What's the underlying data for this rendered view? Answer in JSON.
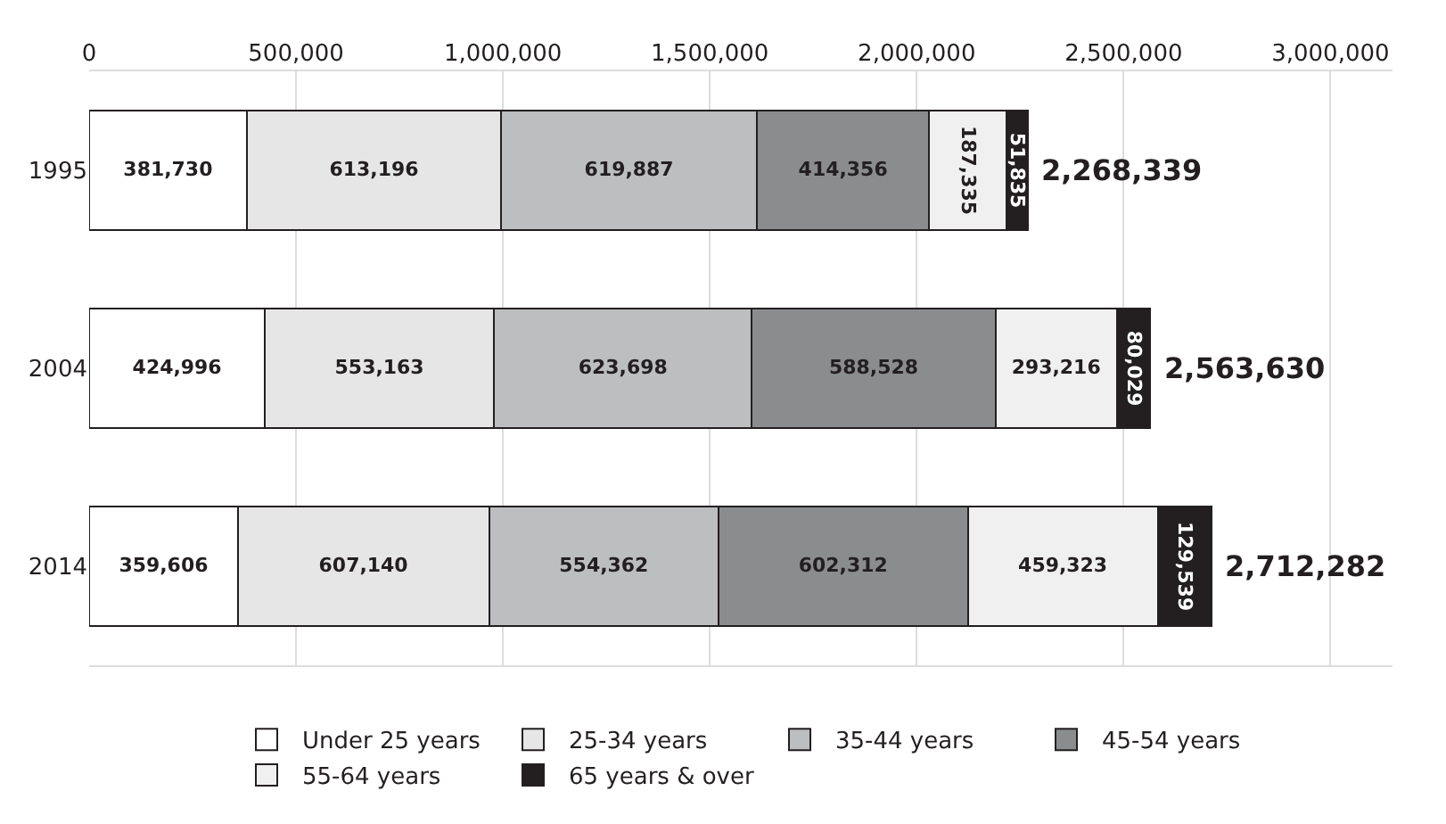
{
  "chart_data": {
    "type": "bar",
    "orientation": "horizontal",
    "stacked": true,
    "categories": [
      "1995",
      "2004",
      "2014"
    ],
    "series": [
      {
        "name": "Under 25 years",
        "color": "#ffffff",
        "values": [
          381730,
          424996,
          359606
        ],
        "value_labels": [
          "381,730",
          "424,996",
          "359,606"
        ]
      },
      {
        "name": "25-34 years",
        "color": "#e6e6e6",
        "values": [
          613196,
          553163,
          607140
        ],
        "value_labels": [
          "613,196",
          "553,163",
          "607,140"
        ]
      },
      {
        "name": "35-44 years",
        "color": "#bcbec0",
        "values": [
          619887,
          623698,
          554362
        ],
        "value_labels": [
          "619,887",
          "623,698",
          "554,362"
        ]
      },
      {
        "name": "45-54 years",
        "color": "#8a8c8e",
        "values": [
          414356,
          588528,
          602312
        ],
        "value_labels": [
          "414,356",
          "588,528",
          "602,312"
        ]
      },
      {
        "name": "55-64 years",
        "color": "#f0f0f0",
        "values": [
          187335,
          293216,
          459323
        ],
        "value_labels": [
          "187,335",
          "293,216",
          "459,323"
        ]
      },
      {
        "name": "65 years & over",
        "color": "#231f20",
        "values": [
          51835,
          80029,
          129539
        ],
        "value_labels": [
          "51,835",
          "80,029",
          "129,539"
        ]
      }
    ],
    "totals": [
      "2,268,339",
      "2,563,630",
      "2,712,282"
    ],
    "xlim": [
      0,
      3150000
    ],
    "xticks": [
      {
        "value": 0,
        "label": "0"
      },
      {
        "value": 500000,
        "label": "500,000"
      },
      {
        "value": 1000000,
        "label": "1,000,000"
      },
      {
        "value": 1500000,
        "label": "1,500,000"
      },
      {
        "value": 2000000,
        "label": "2,000,000"
      },
      {
        "value": 2500000,
        "label": "2,500,000"
      },
      {
        "value": 3000000,
        "label": "3,000,000"
      }
    ],
    "grid": "x",
    "legend": "bottom"
  }
}
